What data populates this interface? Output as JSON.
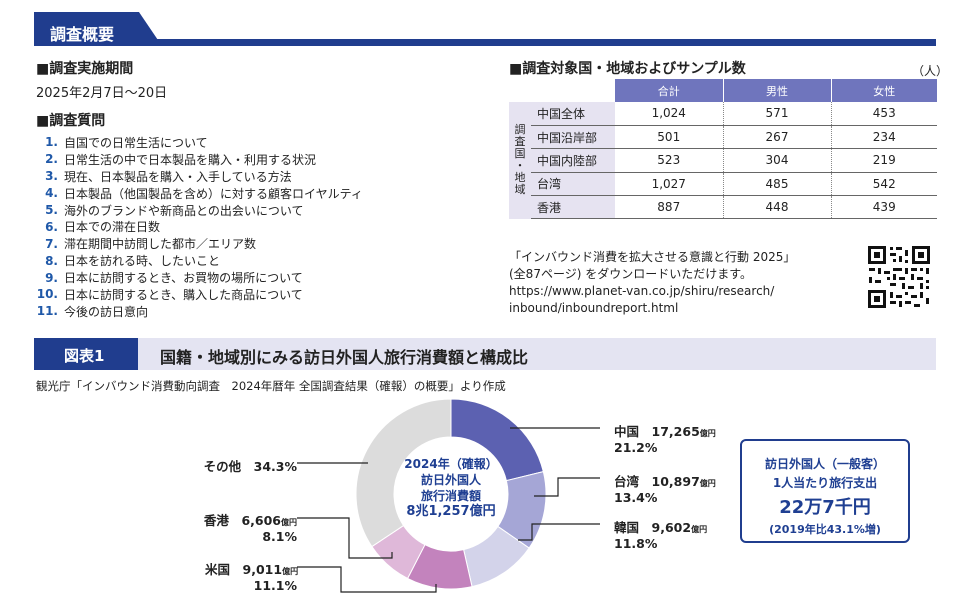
{
  "header": {
    "title": "調査概要"
  },
  "period": {
    "heading": "■調査実施期間",
    "value": "2025年2月7日～20日"
  },
  "questions": {
    "heading": "■調査質問",
    "items": [
      {
        "num": "1.",
        "text": "自国での日常生活について"
      },
      {
        "num": "2.",
        "text": "日常生活の中で日本製品を購入・利用する状況"
      },
      {
        "num": "3.",
        "text": "現在、日本製品を購入・入手している方法"
      },
      {
        "num": "4.",
        "text": "日本製品（他国製品を含め）に対する顧客ロイヤルティ"
      },
      {
        "num": "5.",
        "text": "海外のブランドや新商品との出会いについて"
      },
      {
        "num": "6.",
        "text": "日本での滞在日数"
      },
      {
        "num": "7.",
        "text": "滞在期間中訪問した都市／エリア数"
      },
      {
        "num": "8.",
        "text": "日本を訪れる時、したいこと"
      },
      {
        "num": "9.",
        "text": "日本に訪問するとき、お買物の場所について"
      },
      {
        "num": "10.",
        "text": "日本に訪問するとき、購入した商品について"
      },
      {
        "num": "11.",
        "text": "今後の訪日意向"
      }
    ]
  },
  "sample_table": {
    "heading": "■調査対象国・地域およびサンプル数",
    "unit": "（人）",
    "vertical_label": "調査国・地域",
    "columns": [
      "合計",
      "男性",
      "女性"
    ],
    "rows": [
      {
        "label": "中国全体",
        "values": [
          "1,024",
          "571",
          "453"
        ]
      },
      {
        "label": "中国沿岸部",
        "values": [
          "501",
          "267",
          "234"
        ]
      },
      {
        "label": "中国内陸部",
        "values": [
          "523",
          "304",
          "219"
        ]
      },
      {
        "label": "台湾",
        "values": [
          "1,027",
          "485",
          "542"
        ]
      },
      {
        "label": "香港",
        "values": [
          "887",
          "448",
          "439"
        ]
      }
    ]
  },
  "download": {
    "line1": "「インバウンド消費を拡大させる意識と行動 2025」",
    "line2": "(全87ページ) をダウンロードいただけます。",
    "line3": "https://www.planet-van.co.jp/shiru/research/",
    "line4": "inbound/inboundreport.html"
  },
  "figure": {
    "tab": "図表1",
    "title": "国籍・地域別にみる訪日外国人旅行消費額と構成比",
    "source": "観光庁「インバウンド消費動向調査　2024年暦年 全国調査結果（確報）の概要」より作成"
  },
  "chart_data": {
    "type": "pie",
    "donut_center": {
      "line1": "2024年（確報）",
      "line2": "訪日外国人",
      "line3": "旅行消費額",
      "total": "8兆1,257億円"
    },
    "slices": [
      {
        "name": "中国",
        "amount": "17,265",
        "unit": "億円",
        "percent": 21.2,
        "percent_label": "21.2%",
        "color": "#5c61b1"
      },
      {
        "name": "台湾",
        "amount": "10,897",
        "unit": "億円",
        "percent": 13.4,
        "percent_label": "13.4%",
        "color": "#a5a6d6"
      },
      {
        "name": "韓国",
        "amount": "9,602",
        "unit": "億円",
        "percent": 11.8,
        "percent_label": "11.8%",
        "color": "#d3d3ea"
      },
      {
        "name": "米国",
        "amount": "9,011",
        "unit": "億円",
        "percent": 11.1,
        "percent_label": "11.1%",
        "color": "#c383bd"
      },
      {
        "name": "香港",
        "amount": "6,606",
        "unit": "億円",
        "percent": 8.1,
        "percent_label": "8.1%",
        "color": "#dfb8d9"
      },
      {
        "name": "その他",
        "amount": "",
        "unit": "",
        "percent": 34.3,
        "percent_label": "34.3%",
        "color": "#dcdcdc"
      }
    ]
  },
  "callout": {
    "line1": "訪日外国人（一般客）",
    "line2": "1人当たり旅行支出",
    "amount": "22万7千円",
    "note": "(2019年比43.1%増)"
  }
}
